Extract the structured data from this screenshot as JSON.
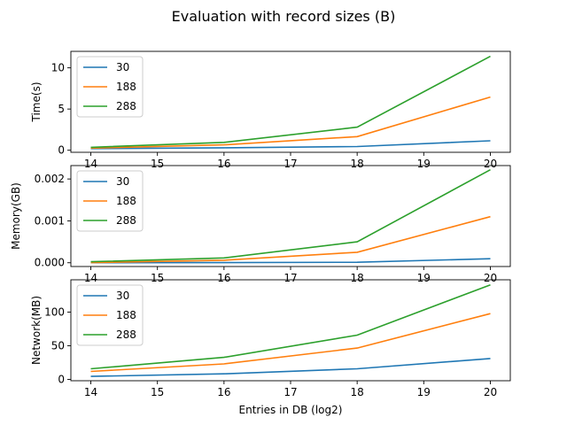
{
  "figure": {
    "title": "Evaluation with record sizes (B)"
  },
  "chart_data": [
    {
      "type": "line",
      "ylabel": "Time(s)",
      "xlabel": "",
      "x": [
        14,
        16,
        18,
        20
      ],
      "xticks": [
        "14",
        "15",
        "16",
        "17",
        "18",
        "19",
        "20"
      ],
      "xlim": [
        13.7,
        20.3
      ],
      "ylim": [
        -0.25,
        12.0
      ],
      "yticks": [
        0,
        5,
        10
      ],
      "yticklabels": [
        "0",
        "5",
        "10"
      ],
      "legend": "upper-left",
      "grid": false,
      "series": [
        {
          "name": "30",
          "color": "#1f77b4",
          "values": [
            0.2,
            0.3,
            0.45,
            1.15
          ]
        },
        {
          "name": "188",
          "color": "#ff7f0e",
          "values": [
            0.25,
            0.65,
            1.65,
            6.45
          ]
        },
        {
          "name": "288",
          "color": "#2ca02c",
          "values": [
            0.35,
            0.95,
            2.8,
            11.4
          ]
        }
      ]
    },
    {
      "type": "line",
      "ylabel": "Memory(GB)",
      "xlabel": "",
      "x": [
        14,
        16,
        18,
        20
      ],
      "xticks": [
        "14",
        "15",
        "16",
        "17",
        "18",
        "19",
        "20"
      ],
      "xlim": [
        13.7,
        20.3
      ],
      "ylim": [
        -9e-05,
        0.00232
      ],
      "yticks": [
        0.0,
        0.001,
        0.002
      ],
      "yticklabels": [
        "0.000",
        "0.001",
        "0.002"
      ],
      "legend": "upper-left",
      "grid": false,
      "series": [
        {
          "name": "30",
          "color": "#1f77b4",
          "values": [
            5e-07,
            2e-06,
            1.2e-05,
            9.5e-05
          ]
        },
        {
          "name": "188",
          "color": "#ff7f0e",
          "values": [
            3e-06,
            6e-05,
            0.00025,
            0.0011
          ]
        },
        {
          "name": "288",
          "color": "#2ca02c",
          "values": [
            2.5e-05,
            0.000115,
            0.0005,
            0.00222
          ]
        }
      ]
    },
    {
      "type": "line",
      "ylabel": "Network(MB)",
      "xlabel": "Entries in DB (log2)",
      "x": [
        14,
        16,
        18,
        20
      ],
      "xticks": [
        "14",
        "15",
        "16",
        "17",
        "18",
        "19",
        "20"
      ],
      "xlim": [
        13.7,
        20.3
      ],
      "ylim": [
        -2,
        148
      ],
      "yticks": [
        0,
        50,
        100
      ],
      "yticklabels": [
        "0",
        "50",
        "100"
      ],
      "legend": "upper-left",
      "grid": false,
      "series": [
        {
          "name": "30",
          "color": "#1f77b4",
          "values": [
            4.5,
            8.2,
            15.8,
            31.0
          ]
        },
        {
          "name": "188",
          "color": "#ff7f0e",
          "values": [
            11.8,
            23.0,
            46.5,
            97.8
          ]
        },
        {
          "name": "288",
          "color": "#2ca02c",
          "values": [
            15.8,
            32.8,
            65.8,
            140.5
          ]
        }
      ]
    }
  ]
}
